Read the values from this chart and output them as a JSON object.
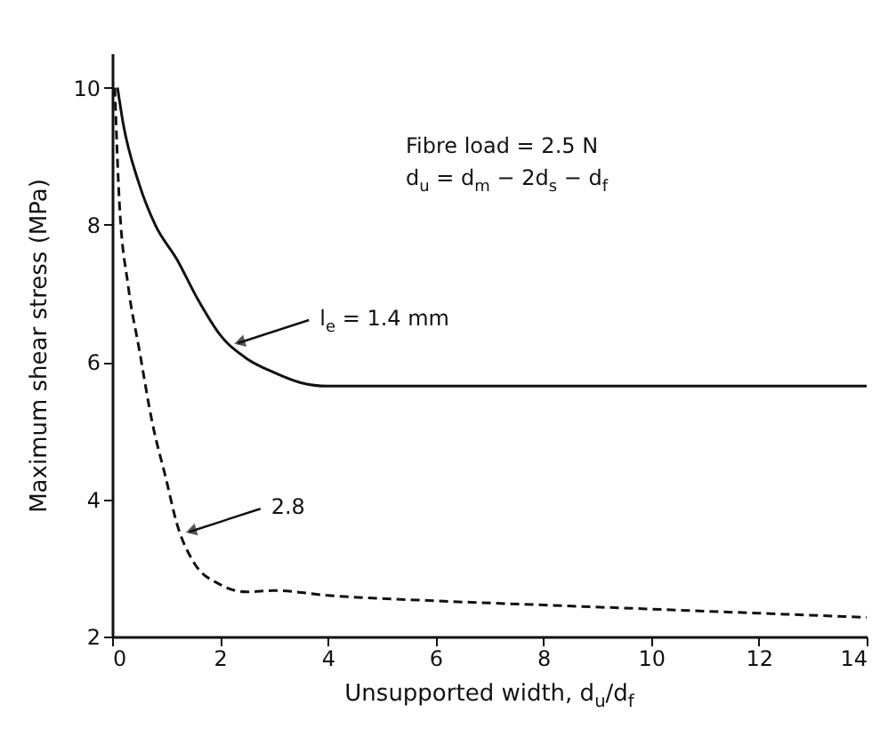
{
  "chart_data": {
    "type": "line",
    "xlabel": "Unsupported width, d$_{u}$/d$_{f}$",
    "ylabel": "Maximum shear stress (MPa)",
    "xlim": [
      0,
      14
    ],
    "ylim": [
      2,
      10.5
    ],
    "xticks": [
      0,
      2,
      4,
      6,
      8,
      10,
      12,
      14
    ],
    "yticks": [
      2,
      4,
      6,
      8,
      10
    ],
    "grid": false,
    "marker": "none",
    "series": [
      {
        "color": "#111111",
        "line_style": "solid",
        "x": [
          0.1,
          0.2,
          0.5,
          0.8,
          1.2,
          1.6,
          2,
          2.5,
          3,
          3.5,
          4,
          6,
          8,
          10,
          12,
          14
        ],
        "values": [
          10,
          9.5,
          8.6,
          8,
          7.5,
          6.9,
          6.4,
          6.05,
          5.85,
          5.7,
          5.65,
          5.65,
          5.65,
          5.65,
          5.65,
          5.65
        ]
      },
      {
        "color": "#111111",
        "line_style": "dashed",
        "x": [
          0.05,
          0.13,
          0.3,
          0.5,
          0.75,
          1,
          1.2,
          1.5,
          2,
          2.5,
          3,
          4,
          6,
          8,
          10,
          12,
          14
        ],
        "values": [
          10,
          8.4,
          7.1,
          6.2,
          5.1,
          4.3,
          3.65,
          3.1,
          2.76,
          2.65,
          2.67,
          2.6,
          2.52,
          2.46,
          2.4,
          2.34,
          2.28
        ]
      }
    ],
    "annotations": [
      "Fibre load = 2.5 N",
      "d$_{u}$ = d$_{m}$ − 2d$_{s}$ − d$_{f}$",
      {
        "text": "l$_{e}$ = 1.4 mm",
        "x": 2.2,
        "y": 6.25
      },
      {
        "text": "2.8",
        "x": 1.3,
        "y": 3.5
      }
    ]
  }
}
